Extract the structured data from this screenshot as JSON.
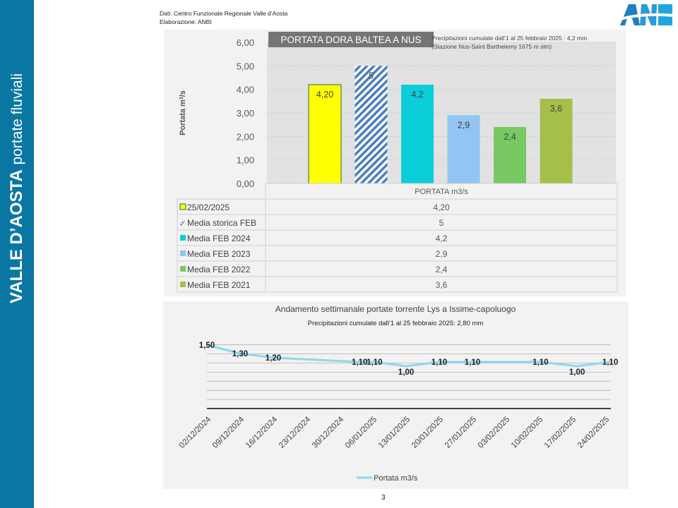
{
  "sidebar": {
    "title_bold": "VALLE D’AOSTA",
    "title_light": "portate fluviali"
  },
  "header": {
    "source_line1": "Dati: Centro Funzionale Regionale Valle d’Aosta",
    "source_line2": "Elaborazione: ANBI",
    "logo_text": "ANBI"
  },
  "page_number": "3",
  "colors": {
    "sidebar": "#0a77a3",
    "bar_2025": "#ffff00",
    "bar_storica": "#4a7ebb",
    "bar_2024": "#0cced8",
    "bar_2023": "#92c5f2",
    "bar_2022": "#78c864",
    "bar_2021": "#a4c04a",
    "line": "#8fd6f0"
  },
  "chart_data": [
    {
      "type": "bar",
      "title": "PORTATA DORA BALTEA A NUS",
      "annotation_line1": "Precipitazioni cumulate dall’1 al 25 febbraio 2025 : 4,2 mm",
      "annotation_line2": "(Stazione Nus-Saint Barthelemy 1675 m slm)",
      "ylabel": "Portata m3/s",
      "ylim": [
        0,
        6
      ],
      "yticks": [
        "0,00",
        "1,00",
        "2,00",
        "3,00",
        "4,00",
        "5,00",
        "6,00"
      ],
      "table_header": "PORTATA m3/s",
      "categories": [
        "25/02/2025",
        "Media storica FEB",
        "Media FEB 2024",
        "Media FEB 2023",
        "Media FEB 2022",
        "Media FEB 2021"
      ],
      "values": [
        4.2,
        5,
        4.2,
        2.9,
        2.4,
        3.6
      ],
      "labels": [
        "4,20",
        "5",
        "4,2",
        "2,9",
        "2,4",
        "3,6"
      ],
      "grid": true,
      "legend": "data-table"
    },
    {
      "type": "line",
      "title": "Andamento settimanale portate torrente Lys a Issime-capoluogo",
      "subtitle": "Precipitazioni cumulate dall’1 al 25 febbraio 2025: 2,80 mm",
      "x_ticks": [
        "02/12/2024",
        "09/12/2024",
        "16/12/2024",
        "23/12/2024",
        "30/12/2024",
        "06/01/2025",
        "13/01/2025",
        "20/01/2025",
        "27/01/2025",
        "03/02/2025",
        "10/02/2025",
        "17/02/2025",
        "24/02/2025"
      ],
      "series": [
        {
          "name": "Portata m3/s",
          "x": [
            "02/12/2024",
            "09/12/2024",
            "16/12/2024",
            "03/01/2025",
            "06/01/2025",
            "13/01/2025",
            "20/01/2025",
            "27/01/2025",
            "10/02/2025",
            "17/02/2025",
            "25/02/2025"
          ],
          "x_index": [
            0,
            1,
            2,
            4.6,
            5.05,
            6.0,
            7.0,
            8.0,
            10.05,
            11.15,
            12.15
          ],
          "values": [
            1.5,
            1.3,
            1.2,
            1.1,
            1.1,
            1.0,
            1.1,
            1.1,
            1.1,
            1.0,
            1.1
          ],
          "labels": [
            "1,50",
            "1,30",
            "1,20",
            "1,10",
            "1,10",
            "1,00",
            "1,10",
            "1,10",
            "1,10",
            "1,00",
            "1,10"
          ]
        }
      ],
      "ylim": [
        0,
        1.75
      ],
      "grid": true,
      "legend": "bottom"
    }
  ]
}
